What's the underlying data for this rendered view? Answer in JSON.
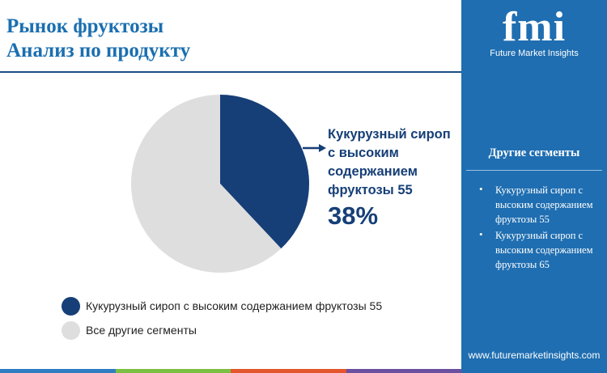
{
  "title": {
    "line1": "Рынок фруктозы",
    "line2": "Анализ по продукту"
  },
  "chart_data": {
    "type": "pie",
    "slices": [
      {
        "label": "Кукурузный сироп с высоким содержанием фруктозы 55",
        "value": 38,
        "color": "#163f77"
      },
      {
        "label": "Все другие сегменты",
        "value": 62,
        "color": "#dedede"
      }
    ],
    "callout": {
      "label": "Кукурузный сироп с высоким содержанием фруктозы 55",
      "value": "38%"
    }
  },
  "legend": {
    "items": [
      {
        "label": "Кукурузный сироп с высоким содержанием фруктозы 55",
        "color": "#163f77"
      },
      {
        "label": "Все другие сегменты",
        "color": "#dedede"
      }
    ]
  },
  "sidebar": {
    "logo_mark": "fmi",
    "logo_subtitle": "Future Market Insights",
    "heading": "Другие сегменты",
    "items": [
      {
        "label": "Кукурузный сироп с высоким содержанием фруктозы 55"
      },
      {
        "label": "Кукурузный сироп с высоким содержанием фруктозы 65"
      }
    ],
    "url": "www.futuremarketinsights.com",
    "background_color": "#1f6eb1"
  },
  "accent_colors": [
    "#2f7ec4",
    "#7bc043",
    "#e4572e",
    "#6b4fa0"
  ]
}
